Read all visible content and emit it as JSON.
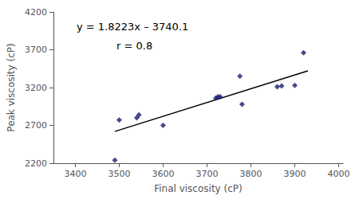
{
  "chart_data": {
    "type": "scatter",
    "xlabel": "Final viscosity (cP)",
    "ylabel": "Peak viscosity (cP)",
    "xlim": [
      3350,
      4010
    ],
    "ylim": [
      2200,
      4200
    ],
    "xticks": [
      3400,
      3500,
      3600,
      3700,
      3800,
      3900,
      4000
    ],
    "yticks": [
      2200,
      2700,
      3200,
      3700,
      4200
    ],
    "grid": false,
    "series": [
      {
        "type": "scatter",
        "color": "#1a1a6e",
        "marker": "diamond",
        "x": [
          3490,
          3500,
          3540,
          3545,
          3600,
          3720,
          3725,
          3730,
          3775,
          3780,
          3860,
          3870,
          3900,
          3920
        ],
        "values": [
          2240,
          2770,
          2800,
          2840,
          2700,
          3060,
          3080,
          3080,
          3350,
          2980,
          3210,
          3220,
          3230,
          3660
        ]
      },
      {
        "type": "line",
        "color": "#000000",
        "line_style": "solid",
        "x": [
          3490,
          3930
        ],
        "values": [
          2619.727,
          3421.539
        ]
      }
    ],
    "annotations": [
      "y = 1.8223x – 3740.1",
      "r = 0.8"
    ]
  }
}
